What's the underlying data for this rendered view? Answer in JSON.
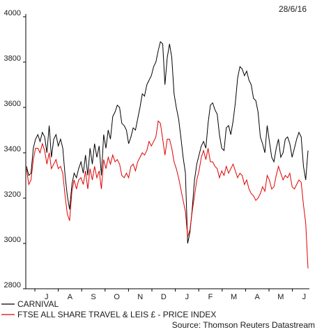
{
  "chart_data": {
    "type": "line",
    "date": "28/6/16",
    "source": "Source: Thomson Reuters Datastream",
    "ylim": [
      2800,
      4000
    ],
    "y_ticks": [
      2800,
      3000,
      3200,
      3400,
      3600,
      3800,
      4000
    ],
    "x_tick_labels": [
      "J",
      "A",
      "S",
      "O",
      "N",
      "D",
      "J",
      "F",
      "M",
      "A",
      "M",
      "J"
    ],
    "grid": false,
    "legend_position": "bottom-left",
    "series": [
      {
        "name": "CARNIVAL",
        "color": "#000000",
        "values": [
          3340,
          3300,
          3310,
          3420,
          3460,
          3480,
          3450,
          3490,
          3470,
          3400,
          3520,
          3380,
          3460,
          3480,
          3430,
          3460,
          3420,
          3300,
          3210,
          3150,
          3260,
          3310,
          3290,
          3330,
          3360,
          3310,
          3390,
          3300,
          3420,
          3350,
          3440,
          3380,
          3430,
          3300,
          3480,
          3420,
          3500,
          3460,
          3560,
          3580,
          3610,
          3600,
          3530,
          3520,
          3500,
          3440,
          3470,
          3510,
          3500,
          3550,
          3600,
          3660,
          3650,
          3700,
          3720,
          3740,
          3780,
          3800,
          3850,
          3890,
          3880,
          3700,
          3820,
          3880,
          3820,
          3660,
          3600,
          3550,
          3470,
          3380,
          3310,
          3000,
          3050,
          3150,
          3280,
          3350,
          3390,
          3430,
          3450,
          3420,
          3530,
          3610,
          3620,
          3590,
          3570,
          3480,
          3420,
          3410,
          3510,
          3520,
          3480,
          3540,
          3620,
          3730,
          3780,
          3770,
          3740,
          3760,
          3720,
          3700,
          3640,
          3630,
          3580,
          3470,
          3440,
          3400,
          3520,
          3450,
          3380,
          3360,
          3420,
          3460,
          3380,
          3400,
          3460,
          3470,
          3440,
          3380,
          3420,
          3460,
          3490,
          3470,
          3340,
          3280,
          3410
        ]
      },
      {
        "name": "FTSE ALL SHARE TRAVEL & LEIS £ - PRICE INDEX",
        "color": "#e00000",
        "values": [
          3330,
          3260,
          3280,
          3370,
          3420,
          3420,
          3400,
          3440,
          3410,
          3350,
          3400,
          3330,
          3350,
          3370,
          3330,
          3340,
          3310,
          3210,
          3130,
          3100,
          3230,
          3280,
          3240,
          3280,
          3290,
          3260,
          3320,
          3240,
          3330,
          3280,
          3340,
          3290,
          3320,
          3240,
          3370,
          3330,
          3380,
          3350,
          3390,
          3360,
          3370,
          3350,
          3300,
          3290,
          3310,
          3290,
          3340,
          3350,
          3320,
          3360,
          3380,
          3400,
          3390,
          3410,
          3450,
          3430,
          3450,
          3470,
          3540,
          3530,
          3460,
          3390,
          3460,
          3460,
          3420,
          3360,
          3330,
          3290,
          3240,
          3190,
          3140,
          3030,
          3060,
          3140,
          3210,
          3280,
          3320,
          3380,
          3410,
          3370,
          3420,
          3360,
          3360,
          3340,
          3330,
          3290,
          3320,
          3300,
          3340,
          3310,
          3330,
          3350,
          3320,
          3290,
          3310,
          3300,
          3260,
          3280,
          3240,
          3220,
          3210,
          3190,
          3200,
          3220,
          3250,
          3230,
          3300,
          3280,
          3240,
          3250,
          3300,
          3340,
          3310,
          3280,
          3300,
          3290,
          3310,
          3250,
          3240,
          3260,
          3280,
          3270,
          3170,
          3090,
          2890
        ]
      }
    ]
  }
}
